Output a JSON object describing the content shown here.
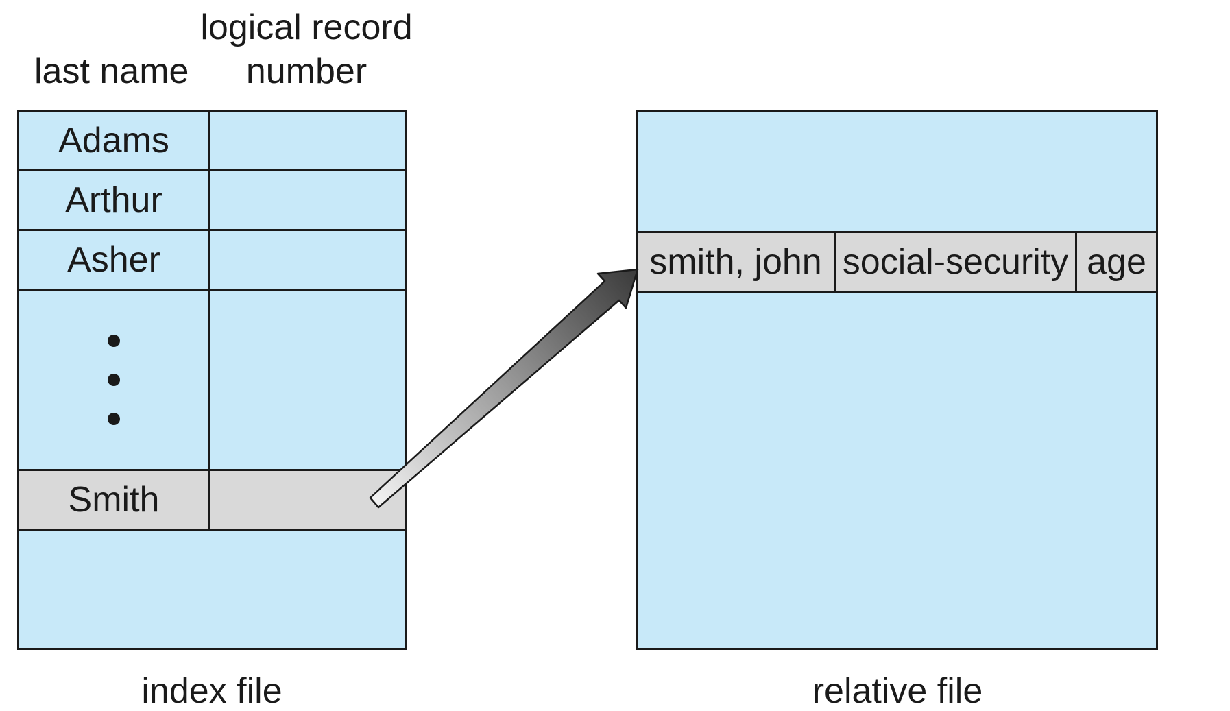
{
  "index_file": {
    "header_last_name": "last name",
    "header_record_line1": "logical record",
    "header_record_line2": "number",
    "rows": [
      "Adams",
      "Arthur",
      "Asher"
    ],
    "ellipsis": "• • •",
    "highlighted_row": "Smith",
    "caption": "index file"
  },
  "relative_file": {
    "record_fields": [
      "smith, john",
      "social-security",
      "age"
    ],
    "caption": "relative file"
  },
  "colors": {
    "file_fill": "#c8e9f9",
    "record_fill": "#d9d9d9",
    "line": "#1a1a1a"
  }
}
